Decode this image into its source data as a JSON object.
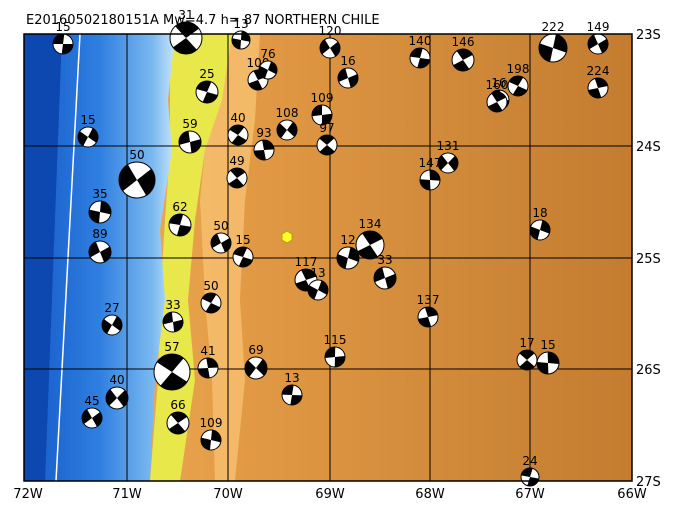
{
  "map": {
    "title": "E20160502180151A  Mw=4.7  h=  87  NORTHERN CHILE",
    "xticks": [
      "72W",
      "71W",
      "70W",
      "69W",
      "68W",
      "67W",
      "66W"
    ],
    "yticks": [
      "23S",
      "24S",
      "25S",
      "26S",
      "27S"
    ]
  },
  "events": [
    {
      "label": "15"
    },
    {
      "label": "31"
    },
    {
      "label": "13"
    },
    {
      "label": "120"
    },
    {
      "label": "140"
    },
    {
      "label": "146"
    },
    {
      "label": "222"
    },
    {
      "label": "149"
    },
    {
      "label": "25"
    },
    {
      "label": "100"
    },
    {
      "label": "76"
    },
    {
      "label": "16"
    },
    {
      "label": "198"
    },
    {
      "label": "224"
    },
    {
      "label": "15"
    },
    {
      "label": "59"
    },
    {
      "label": "40"
    },
    {
      "label": "93"
    },
    {
      "label": "108"
    },
    {
      "label": "109"
    },
    {
      "label": "97"
    },
    {
      "label": "147"
    },
    {
      "label": "131"
    },
    {
      "label": "16"
    },
    {
      "label": "49"
    },
    {
      "label": "35"
    },
    {
      "label": "50"
    },
    {
      "label": "62"
    },
    {
      "label": "134"
    },
    {
      "label": "12"
    },
    {
      "label": "50"
    },
    {
      "label": "15"
    },
    {
      "label": "117"
    },
    {
      "label": "13"
    },
    {
      "label": "33"
    },
    {
      "label": "50"
    },
    {
      "label": "137"
    },
    {
      "label": "27"
    },
    {
      "label": "33"
    },
    {
      "label": "57"
    },
    {
      "label": "41"
    },
    {
      "label": "69"
    },
    {
      "label": "115"
    },
    {
      "label": "17"
    },
    {
      "label": "15"
    },
    {
      "label": "40"
    },
    {
      "label": "13"
    },
    {
      "label": "66"
    },
    {
      "label": "109"
    },
    {
      "label": "45"
    },
    {
      "label": "24"
    },
    {
      "label": "160"
    },
    {
      "label": "18"
    },
    {
      "label": "89"
    }
  ]
}
